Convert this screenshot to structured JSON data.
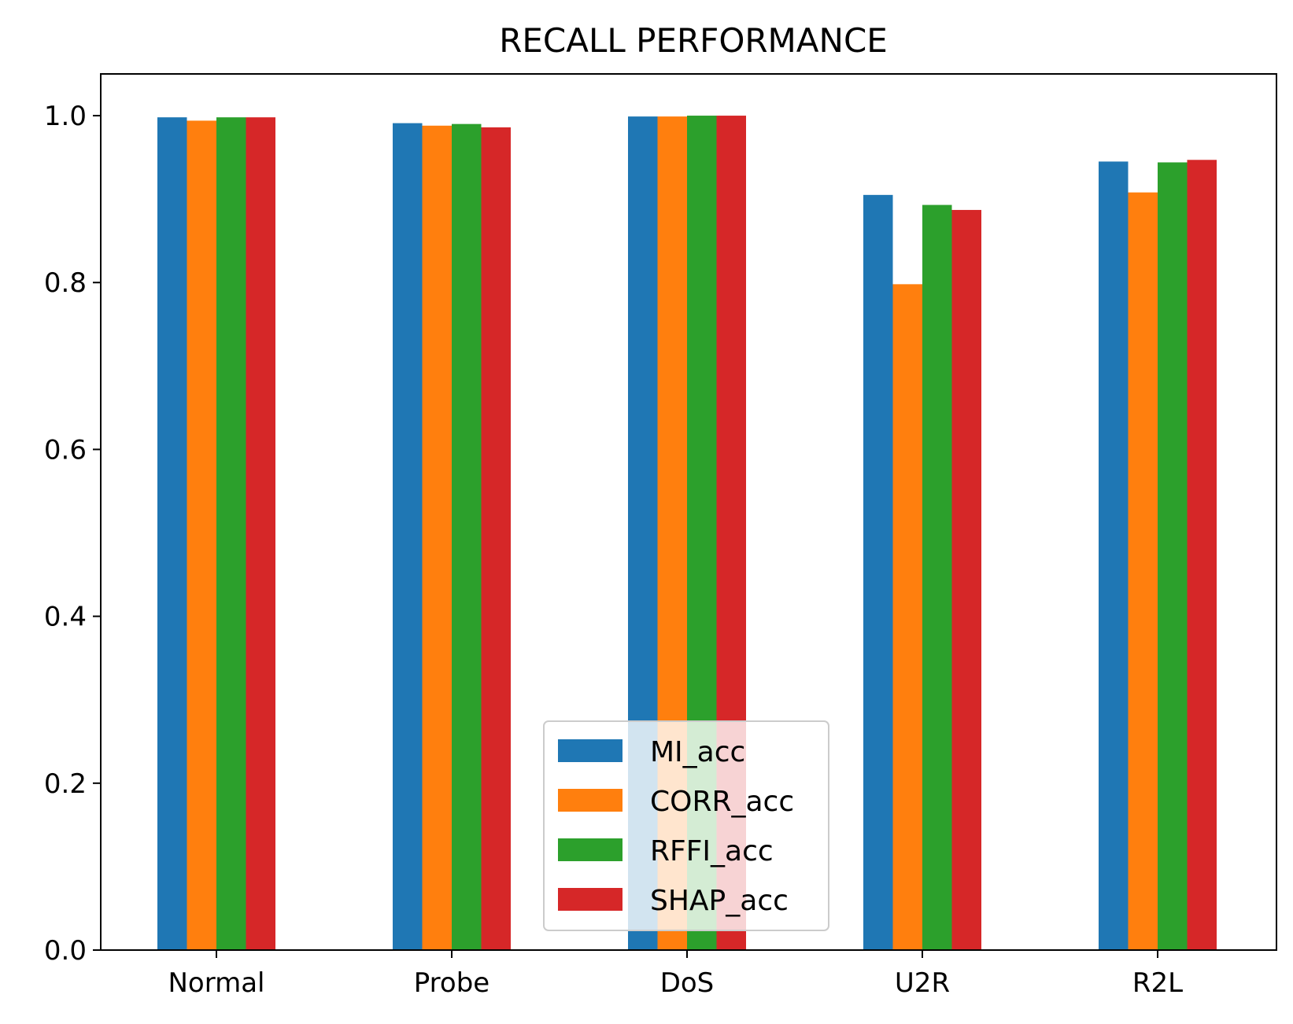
{
  "chart_data": {
    "type": "bar",
    "title": "RECALL PERFORMANCE",
    "xlabel": "",
    "ylabel": "",
    "categories": [
      "Normal",
      "Probe",
      "DoS",
      "U2R",
      "R2L"
    ],
    "ylim": [
      0,
      1.05
    ],
    "yticks": [
      "0.0",
      "0.2",
      "0.4",
      "0.6",
      "0.8",
      "1.0"
    ],
    "grid": false,
    "legend_placement": "lower-center",
    "series": [
      {
        "name": "MI_acc",
        "color": "#1f77b4",
        "values": [
          0.998,
          0.991,
          0.999,
          0.905,
          0.945
        ]
      },
      {
        "name": "CORR_acc",
        "color": "#ff7f0e",
        "values": [
          0.994,
          0.988,
          0.999,
          0.798,
          0.908
        ]
      },
      {
        "name": "RFFI_acc",
        "color": "#2ca02c",
        "values": [
          0.998,
          0.99,
          1.0,
          0.893,
          0.944
        ]
      },
      {
        "name": "SHAP_acc",
        "color": "#d62728",
        "values": [
          0.998,
          0.986,
          1.0,
          0.887,
          0.947
        ]
      }
    ]
  }
}
